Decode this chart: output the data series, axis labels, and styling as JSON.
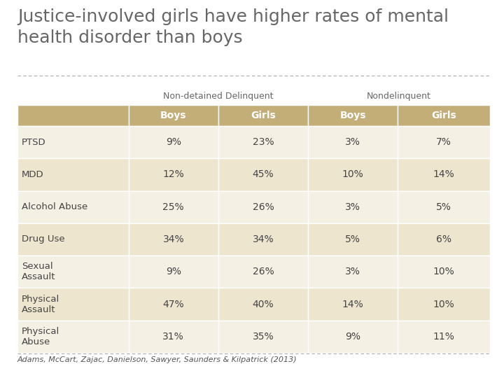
{
  "title": "Justice-involved girls have higher rates of mental\nhealth disorder than boys",
  "group_labels": [
    "Non-detained Delinquent",
    "Nondelinquent"
  ],
  "col_headers": [
    "Boys",
    "Girls",
    "Boys",
    "Girls"
  ],
  "row_labels": [
    "PTSD",
    "MDD",
    "Alcohol Abuse",
    "Drug Use",
    "Sexual\nAssault",
    "Physical\nAssault",
    "Physical\nAbuse"
  ],
  "data": [
    [
      "9%",
      "23%",
      "3%",
      "7%"
    ],
    [
      "12%",
      "45%",
      "10%",
      "14%"
    ],
    [
      "25%",
      "26%",
      "3%",
      "5%"
    ],
    [
      "34%",
      "34%",
      "5%",
      "6%"
    ],
    [
      "9%",
      "26%",
      "3%",
      "10%"
    ],
    [
      "47%",
      "40%",
      "14%",
      "10%"
    ],
    [
      "31%",
      "35%",
      "9%",
      "11%"
    ]
  ],
  "header_bg": "#C4AE78",
  "header_text": "#ffffff",
  "row_bg_light": "#F5F0E4",
  "row_bg_dark": "#EDE5CE",
  "bg_color": "#ffffff",
  "title_color": "#666666",
  "footnote": "Adams, McCart, Zajac, Danielson, Sawyer, Saunders & Kilpatrick (2013)",
  "footnote_color": "#555555",
  "group_label_color": "#666666",
  "dashed_line_color": "#aaaaaa",
  "cell_text_color": "#444444",
  "title_fontsize": 18,
  "group_label_fontsize": 9,
  "header_fontsize": 10,
  "data_fontsize": 10,
  "row_label_fontsize": 9.5,
  "footnote_fontsize": 8
}
